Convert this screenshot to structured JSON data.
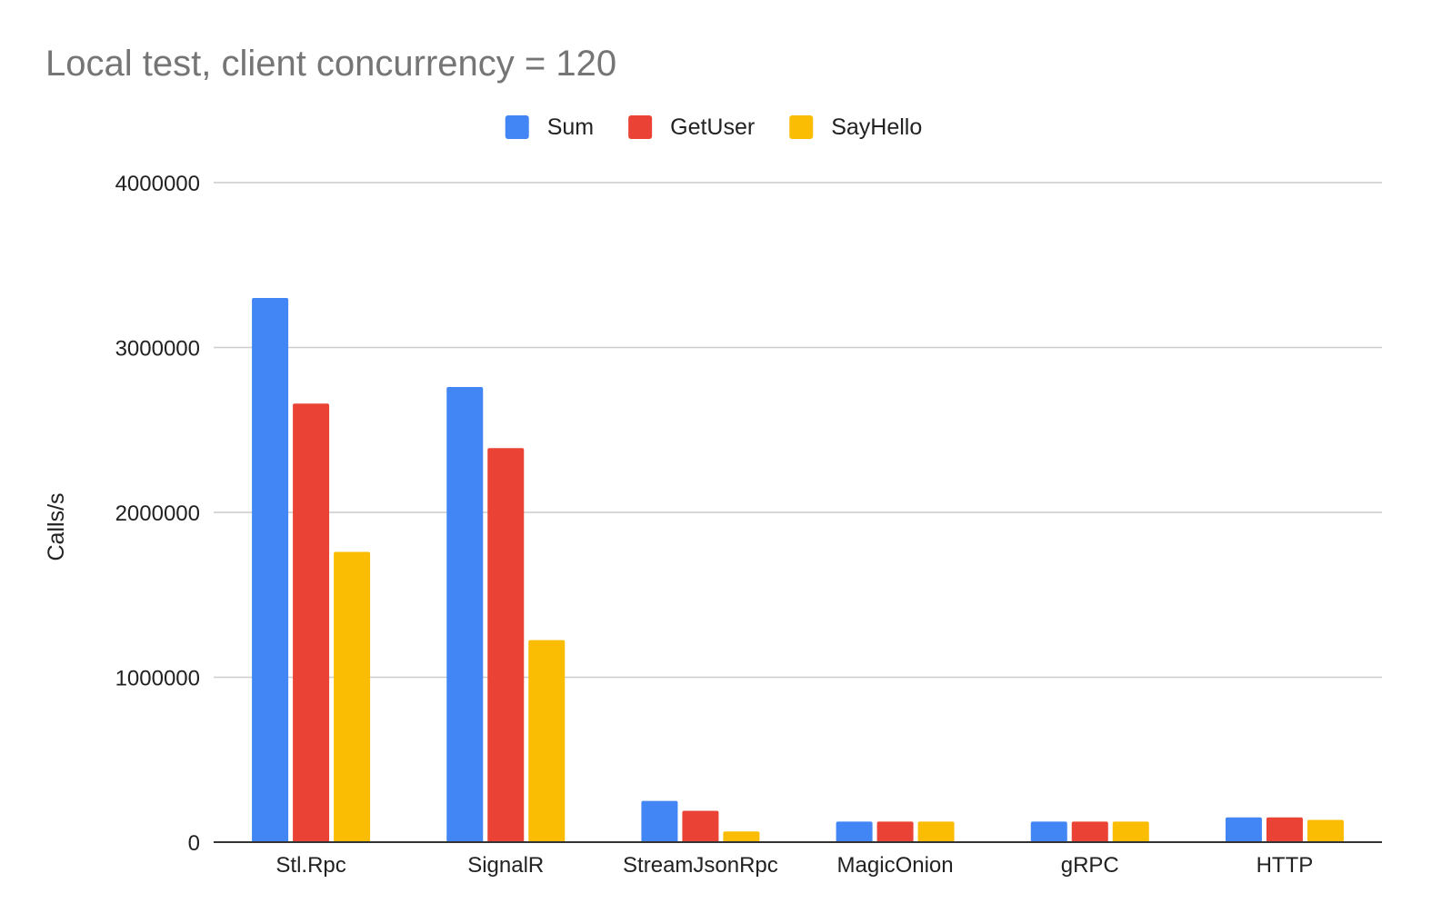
{
  "chart_data": {
    "type": "bar",
    "title": "Local test, client concurrency = 120",
    "xlabel": "",
    "ylabel": "Calls/s",
    "categories": [
      "Stl.Rpc",
      "SignalR",
      "StreamJsonRpc",
      "MagicOnion",
      "gRPC",
      "HTTP"
    ],
    "series": [
      {
        "name": "Sum",
        "color": "#4285f4",
        "values": [
          3300000,
          2760000,
          250000,
          125000,
          125000,
          150000
        ]
      },
      {
        "name": "GetUser",
        "color": "#ea4335",
        "values": [
          2660000,
          2390000,
          190000,
          125000,
          125000,
          150000
        ]
      },
      {
        "name": "SayHello",
        "color": "#fbbc04",
        "values": [
          1760000,
          1225000,
          65000,
          125000,
          125000,
          135000
        ]
      }
    ],
    "ylim": [
      0,
      4000000
    ],
    "yticks": [
      "0",
      "1000000",
      "2000000",
      "3000000",
      "4000000"
    ],
    "grid": true,
    "legend_position": "top-center"
  }
}
